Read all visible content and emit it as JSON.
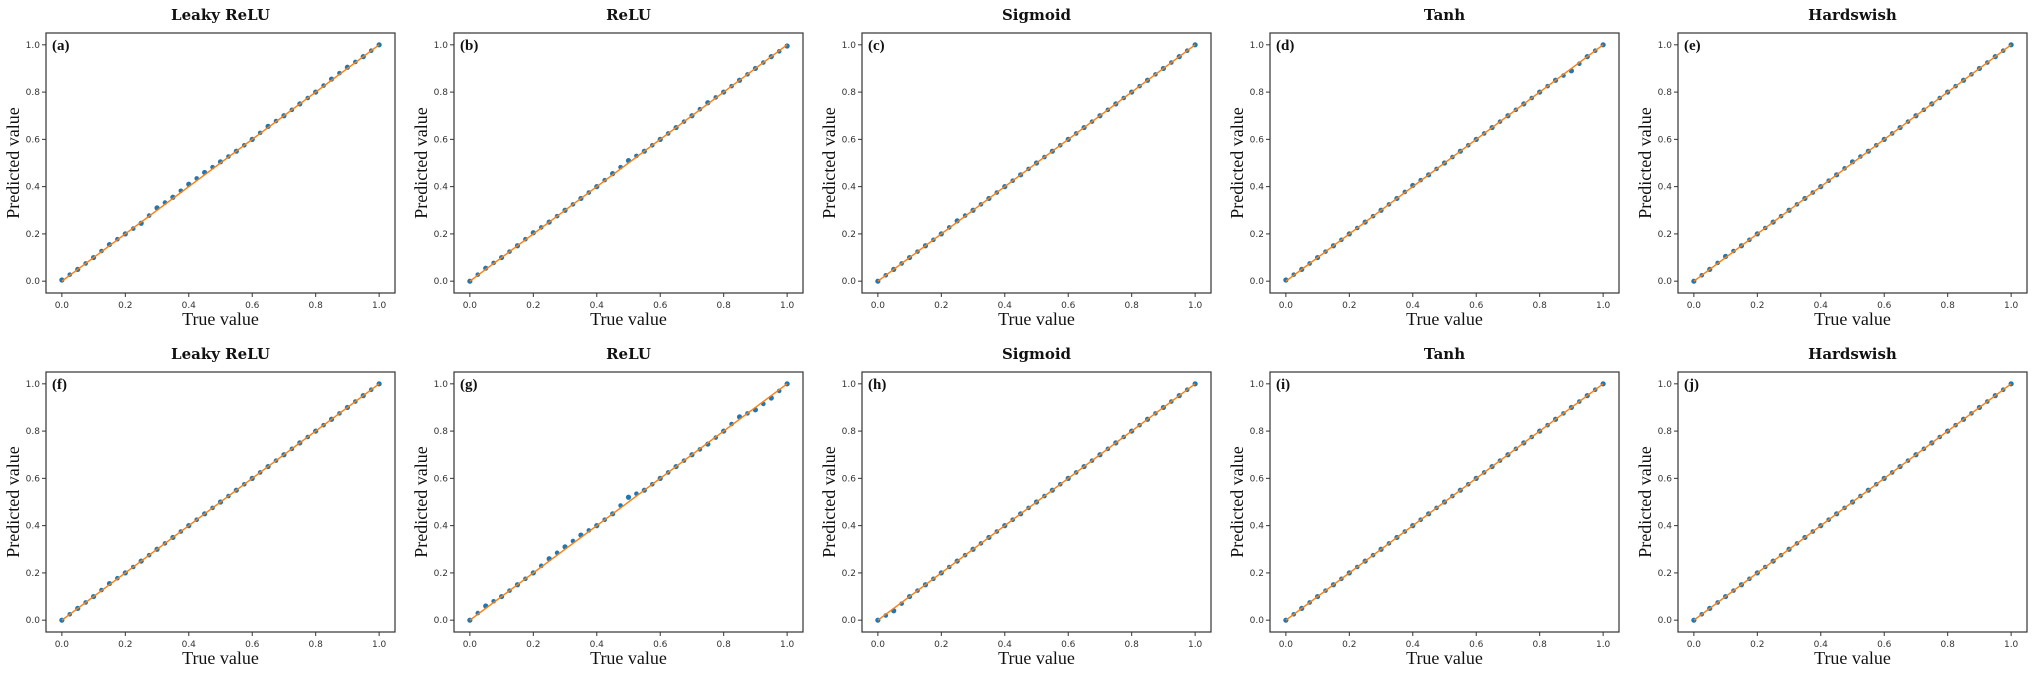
{
  "chart_data": {
    "type": "scatter",
    "layout": "2 rows x 5 columns",
    "xlabel": "True value",
    "ylabel": "Predicted value",
    "xlim": [
      -0.05,
      1.05
    ],
    "ylim": [
      -0.05,
      1.05
    ],
    "ticks": [
      "0.0",
      "0.2",
      "0.4",
      "0.6",
      "0.8",
      "1.0"
    ],
    "tick_values": [
      0,
      0.2,
      0.4,
      0.6,
      0.8,
      1.0
    ],
    "colors": {
      "points": "#1f77b4",
      "fit_line": "#ff7f0e"
    },
    "fit_line": [
      [
        0,
        0
      ],
      [
        1,
        1
      ]
    ],
    "x": [
      0,
      0.05,
      0.1,
      0.15,
      0.2,
      0.25,
      0.3,
      0.35,
      0.4,
      0.45,
      0.5,
      0.55,
      0.6,
      0.65,
      0.7,
      0.75,
      0.8,
      0.85,
      0.9,
      0.95,
      1.0
    ],
    "panels": [
      {
        "tag": "(a)",
        "title": "Leaky ReLU",
        "y": [
          0.005,
          0.05,
          0.1,
          0.155,
          0.2,
          0.245,
          0.31,
          0.355,
          0.41,
          0.46,
          0.505,
          0.55,
          0.6,
          0.655,
          0.7,
          0.75,
          0.8,
          0.855,
          0.905,
          0.95,
          1.0
        ]
      },
      {
        "tag": "(b)",
        "title": "ReLU",
        "y": [
          0.0,
          0.055,
          0.1,
          0.15,
          0.205,
          0.25,
          0.3,
          0.35,
          0.4,
          0.455,
          0.51,
          0.55,
          0.6,
          0.65,
          0.7,
          0.755,
          0.8,
          0.85,
          0.9,
          0.95,
          0.995
        ]
      },
      {
        "tag": "(c)",
        "title": "Sigmoid",
        "y": [
          0.0,
          0.05,
          0.1,
          0.15,
          0.2,
          0.255,
          0.3,
          0.35,
          0.4,
          0.45,
          0.5,
          0.55,
          0.6,
          0.65,
          0.7,
          0.75,
          0.8,
          0.85,
          0.9,
          0.95,
          1.0
        ]
      },
      {
        "tag": "(d)",
        "title": "Tanh",
        "y": [
          0.005,
          0.05,
          0.1,
          0.15,
          0.2,
          0.25,
          0.3,
          0.35,
          0.405,
          0.45,
          0.5,
          0.55,
          0.6,
          0.65,
          0.7,
          0.75,
          0.8,
          0.85,
          0.89,
          0.95,
          1.0
        ]
      },
      {
        "tag": "(e)",
        "title": "Hardswish",
        "y": [
          0.0,
          0.05,
          0.105,
          0.15,
          0.2,
          0.25,
          0.3,
          0.35,
          0.4,
          0.45,
          0.505,
          0.55,
          0.6,
          0.65,
          0.7,
          0.75,
          0.8,
          0.85,
          0.9,
          0.95,
          1.0
        ]
      },
      {
        "tag": "(f)",
        "title": "Leaky ReLU",
        "y": [
          0.0,
          0.05,
          0.1,
          0.155,
          0.2,
          0.25,
          0.3,
          0.35,
          0.4,
          0.45,
          0.5,
          0.55,
          0.6,
          0.65,
          0.7,
          0.75,
          0.8,
          0.85,
          0.9,
          0.95,
          1.0
        ]
      },
      {
        "tag": "(g)",
        "title": "ReLU",
        "y": [
          0.0,
          0.06,
          0.1,
          0.15,
          0.2,
          0.26,
          0.31,
          0.36,
          0.4,
          0.45,
          0.52,
          0.55,
          0.6,
          0.65,
          0.7,
          0.745,
          0.8,
          0.86,
          0.89,
          0.94,
          1.0
        ]
      },
      {
        "tag": "(h)",
        "title": "Sigmoid",
        "y": [
          0.0,
          0.04,
          0.1,
          0.15,
          0.2,
          0.25,
          0.3,
          0.35,
          0.4,
          0.45,
          0.5,
          0.55,
          0.6,
          0.65,
          0.7,
          0.75,
          0.8,
          0.85,
          0.9,
          0.95,
          1.0
        ]
      },
      {
        "tag": "(i)",
        "title": "Tanh",
        "y": [
          0.0,
          0.05,
          0.1,
          0.15,
          0.2,
          0.25,
          0.3,
          0.35,
          0.4,
          0.45,
          0.5,
          0.55,
          0.6,
          0.65,
          0.7,
          0.75,
          0.8,
          0.85,
          0.9,
          0.95,
          1.0
        ]
      },
      {
        "tag": "(j)",
        "title": "Hardswish",
        "y": [
          0.0,
          0.05,
          0.1,
          0.15,
          0.2,
          0.25,
          0.3,
          0.35,
          0.4,
          0.45,
          0.5,
          0.55,
          0.6,
          0.65,
          0.7,
          0.75,
          0.8,
          0.85,
          0.9,
          0.95,
          1.0
        ]
      }
    ]
  }
}
